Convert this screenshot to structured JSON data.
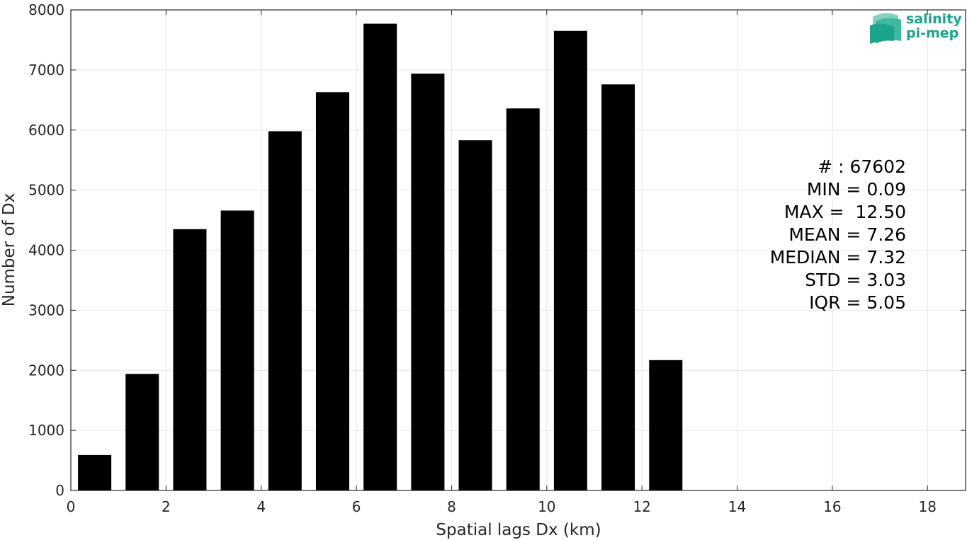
{
  "chart_data": {
    "type": "bar",
    "title": "",
    "xlabel": "Spatial lags Dx (km)",
    "ylabel": "Number of Dx",
    "xlim": [
      0,
      18.8
    ],
    "ylim": [
      0,
      8000
    ],
    "x_ticks": [
      0,
      2,
      4,
      6,
      8,
      10,
      12,
      14,
      16,
      18
    ],
    "y_ticks": [
      0,
      1000,
      2000,
      3000,
      4000,
      5000,
      6000,
      7000,
      8000
    ],
    "grid": true,
    "bin_width": 1,
    "bar_width_fraction": 0.7,
    "bins": [
      {
        "x": 0.5,
        "value": 590
      },
      {
        "x": 1.5,
        "value": 1940
      },
      {
        "x": 2.5,
        "value": 4350
      },
      {
        "x": 3.5,
        "value": 4660
      },
      {
        "x": 4.5,
        "value": 5980
      },
      {
        "x": 5.5,
        "value": 6630
      },
      {
        "x": 6.5,
        "value": 7770
      },
      {
        "x": 7.5,
        "value": 6940
      },
      {
        "x": 8.5,
        "value": 5830
      },
      {
        "x": 9.5,
        "value": 6360
      },
      {
        "x": 10.5,
        "value": 7650
      },
      {
        "x": 11.5,
        "value": 6760
      },
      {
        "x": 12.5,
        "value": 2170
      }
    ],
    "bar_color": "#000000",
    "grid_color": "#e6e6e6",
    "stats": [
      "# : 67602",
      "MIN = 0.09",
      "MAX =  12.50",
      "MEAN = 7.26",
      "MEDIAN = 7.32",
      "STD = 3.03",
      "IQR = 5.05"
    ]
  },
  "logo": {
    "line1": "salinity",
    "line2": "pi-mep",
    "color": "#1aa58c"
  }
}
